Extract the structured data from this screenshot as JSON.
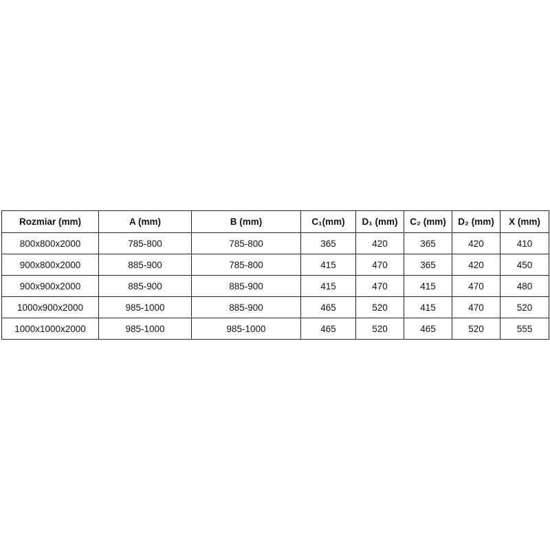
{
  "table": {
    "headers": [
      "Rozmiar (mm)",
      "A (mm)",
      "B (mm)",
      "C₁(mm)",
      "D₁ (mm)",
      "C₂ (mm)",
      "D₂ (mm)",
      "X (mm)"
    ],
    "rows": [
      [
        "800x800x2000",
        "785-800",
        "785-800",
        "365",
        "420",
        "365",
        "420",
        "410"
      ],
      [
        "900x800x2000",
        "885-900",
        "785-800",
        "415",
        "470",
        "365",
        "420",
        "450"
      ],
      [
        "900x900x2000",
        "885-900",
        "885-900",
        "415",
        "470",
        "415",
        "470",
        "480"
      ],
      [
        "1000x900x2000",
        "985-1000",
        "885-900",
        "465",
        "520",
        "415",
        "470",
        "520"
      ],
      [
        "1000x1000x2000",
        "985-1000",
        "985-1000",
        "465",
        "520",
        "465",
        "520",
        "555"
      ]
    ]
  }
}
